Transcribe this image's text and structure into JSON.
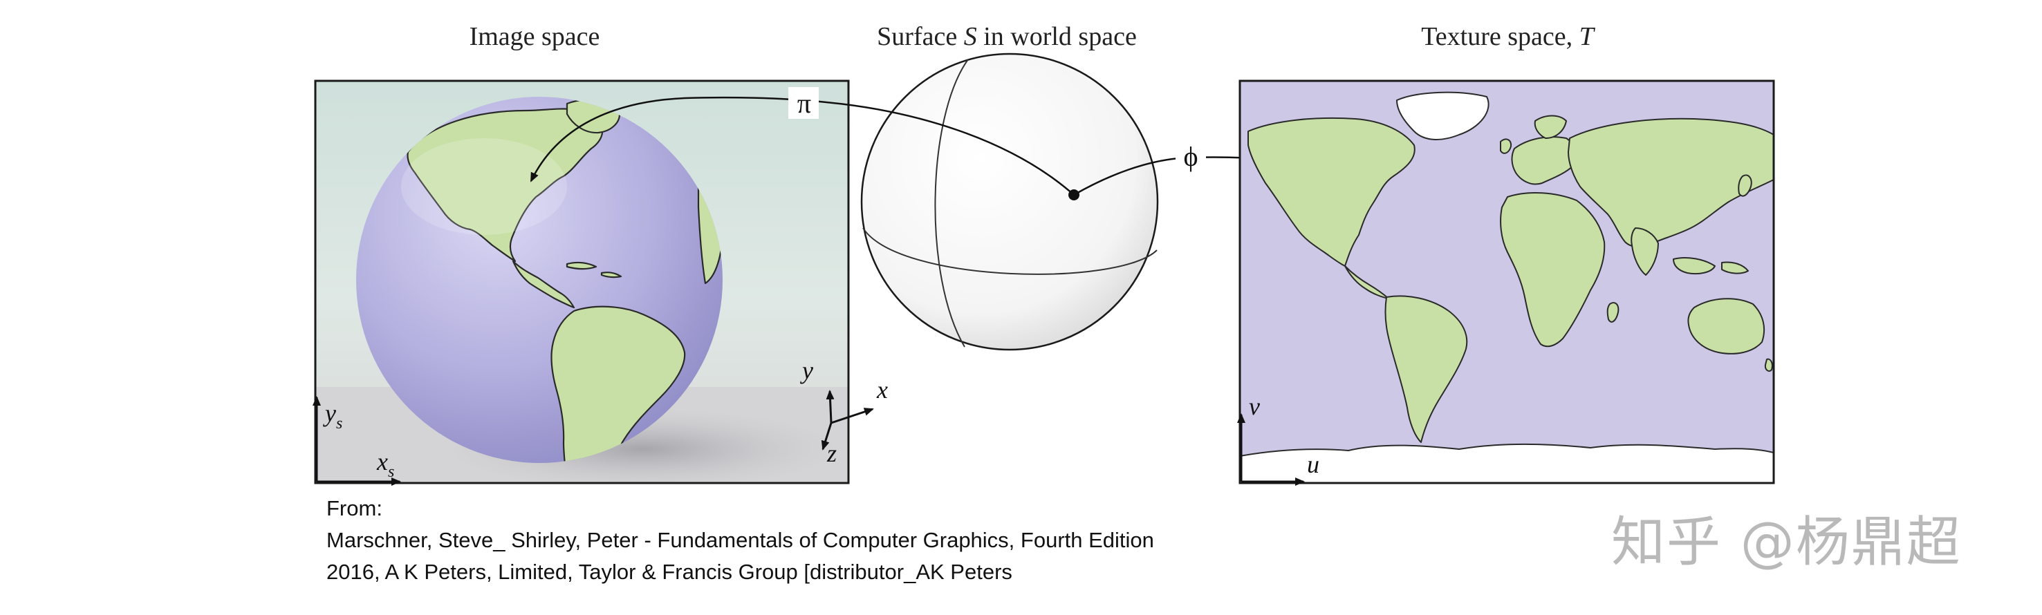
{
  "panels": {
    "image_space": {
      "title": "Image space",
      "axis_x": "x",
      "axis_x_sub": "s",
      "axis_y": "y",
      "axis_y_sub": "s"
    },
    "world_space": {
      "title_prefix": "Surface ",
      "title_var": "S",
      "title_suffix": " in world space",
      "axis_x": "x",
      "axis_y": "y",
      "axis_z": "z"
    },
    "texture_space": {
      "title_prefix": "Texture space, ",
      "title_var": "T",
      "axis_u": "u",
      "axis_v": "v"
    }
  },
  "mappings": {
    "pi": "π",
    "phi": "ϕ"
  },
  "caption": {
    "line1": "From:",
    "line2": "Marschner, Steve_ Shirley, Peter - Fundamentals of Computer Graphics, Fourth Edition",
    "line3": "2016, A K Peters, Limited, Taylor & Francis Group [distributor_AK Peters"
  },
  "watermark": "知乎 @杨鼎超",
  "colors": {
    "land": "#c9e3a8",
    "ocean": "#cdc9e6",
    "globe": "#b8b4e2",
    "background_panel": "#d9e6e1",
    "ice": "#ffffff"
  }
}
